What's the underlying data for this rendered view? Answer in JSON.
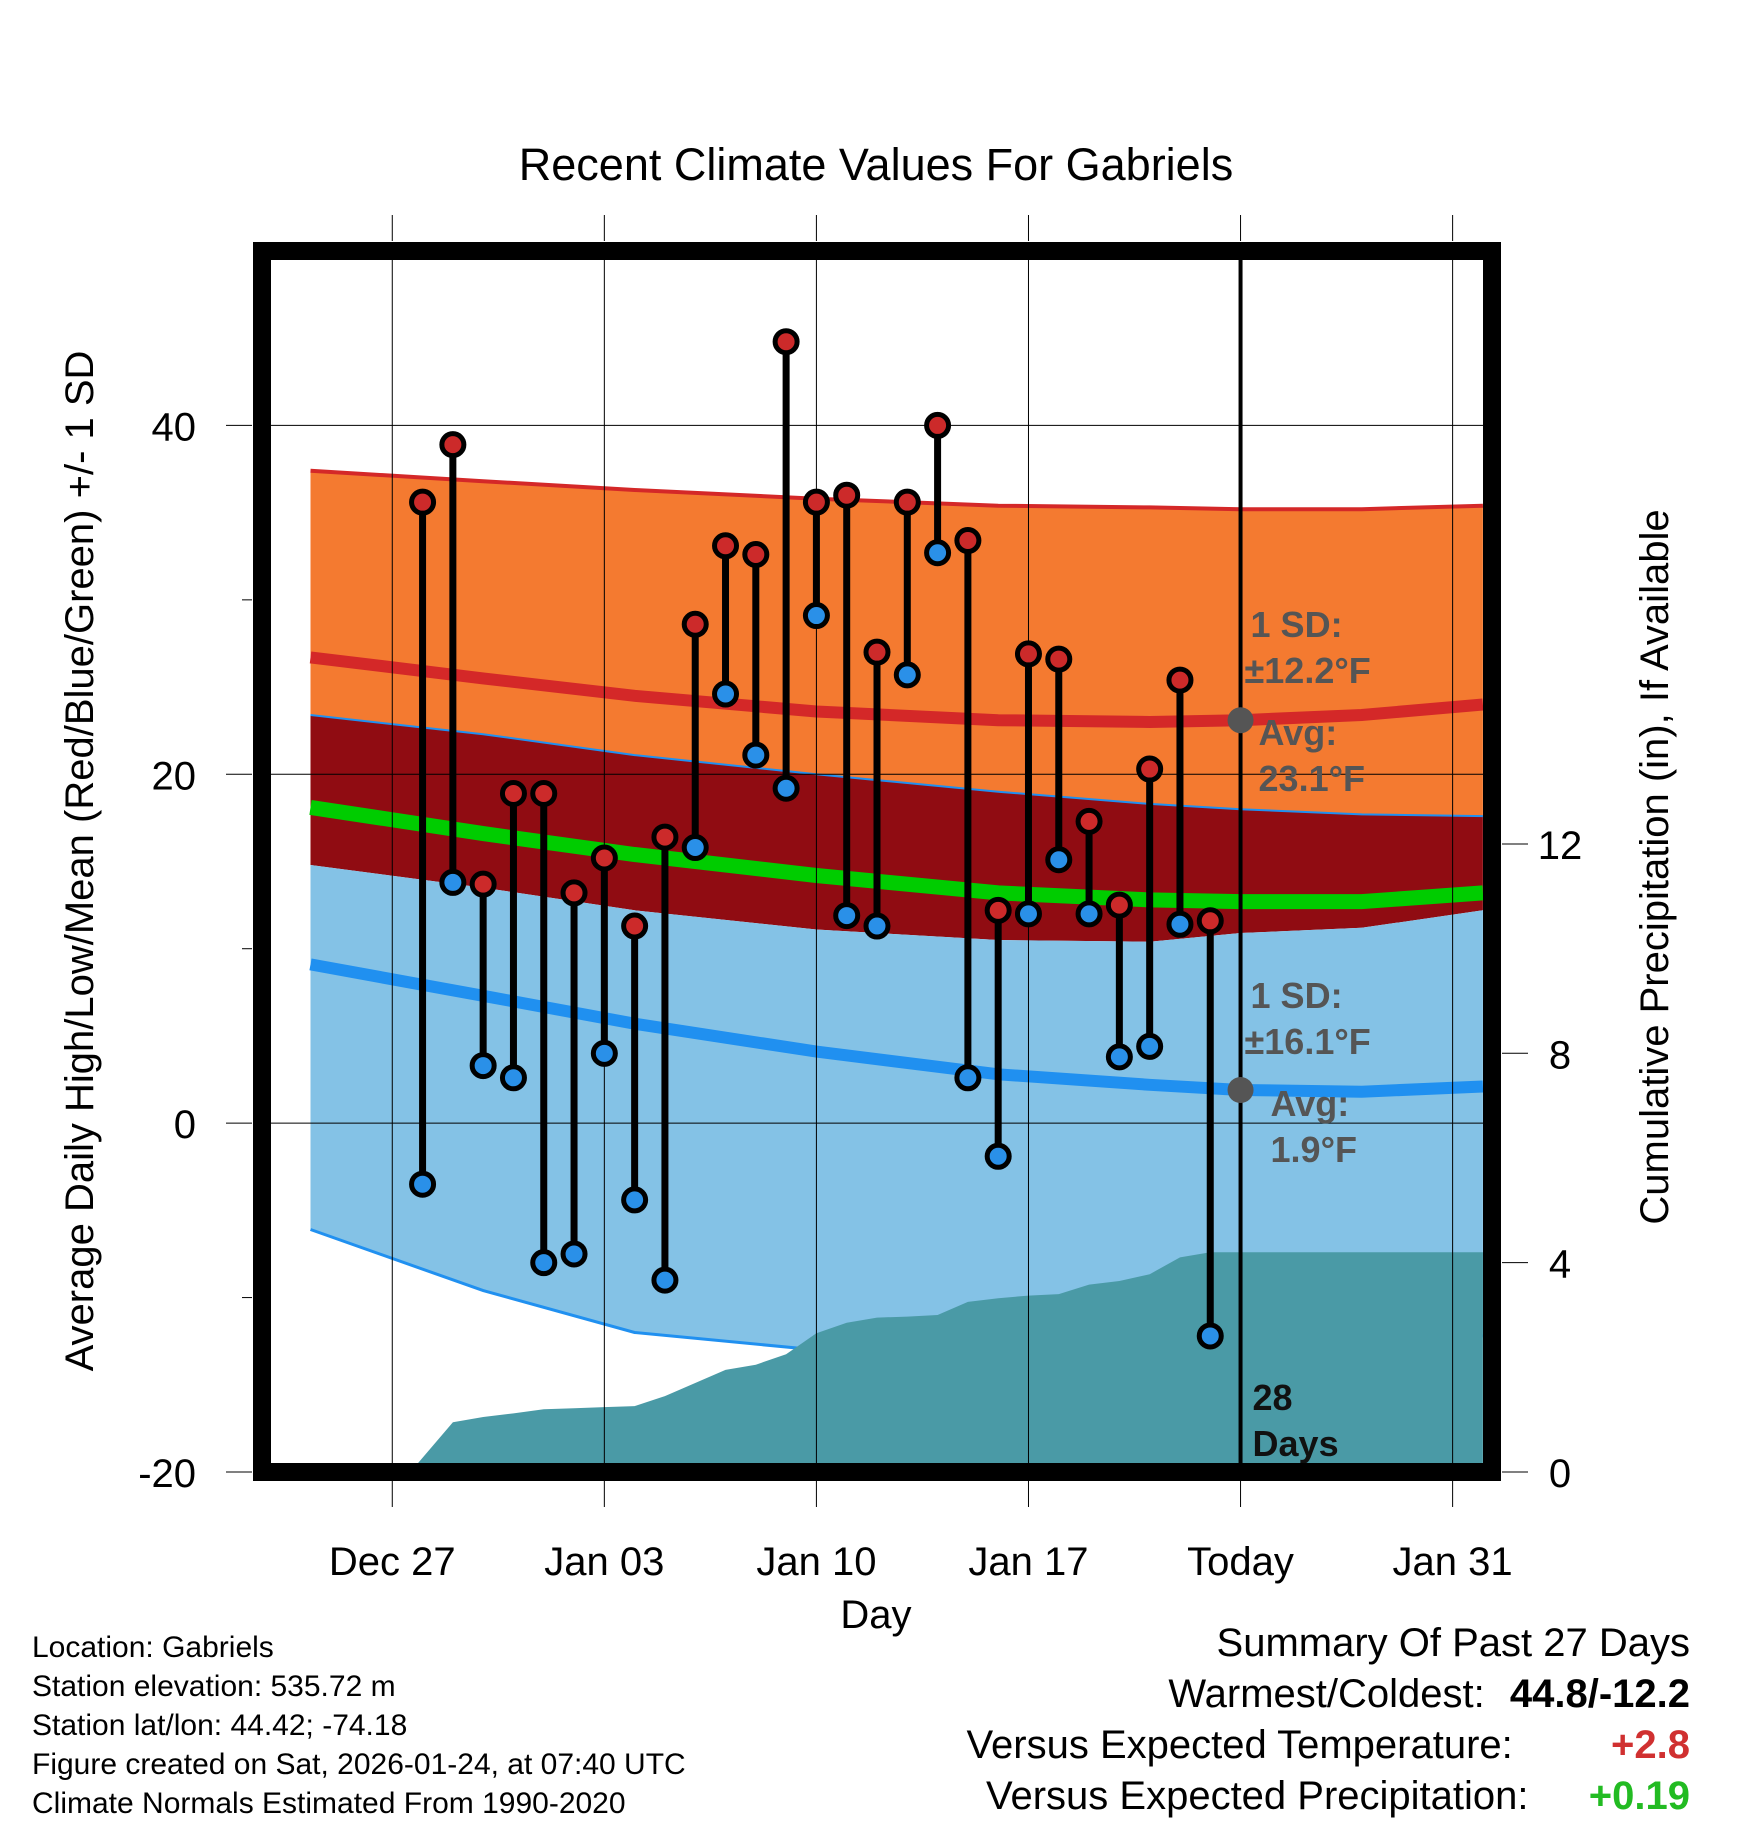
{
  "chart_data": {
    "type": "line",
    "title": "Recent Climate Values For Gabriels",
    "xlabel": "Day",
    "ylabel_left": "Average Daily High/Low/Mean (Red/Blue/Green) +/- 1 SD",
    "ylabel_right": "Cumulative Precipitation (in), If Available",
    "xlim": [
      -4.3,
      36.3
    ],
    "ylim_left": [
      -20,
      50
    ],
    "ylim_right": [
      0,
      23.33
    ],
    "x_ticks": [
      {
        "x": 0,
        "label": "Dec 27"
      },
      {
        "x": 7,
        "label": "Jan 03"
      },
      {
        "x": 14,
        "label": "Jan 10"
      },
      {
        "x": 21,
        "label": "Jan 17"
      },
      {
        "x": 28,
        "label": "Today"
      },
      {
        "x": 35,
        "label": "Jan 31"
      }
    ],
    "y_left_ticks": [
      {
        "value": -20,
        "label": "-20"
      },
      {
        "value": 0,
        "label": "0"
      },
      {
        "value": 20,
        "label": "20"
      },
      {
        "value": 40,
        "label": "40"
      }
    ],
    "y_left_minor_ticks": [
      -10,
      10,
      30
    ],
    "y_right_ticks": [
      {
        "value": 0,
        "label": "0"
      },
      {
        "value": 4,
        "label": "4"
      },
      {
        "value": 8,
        "label": "8"
      },
      {
        "value": 12,
        "label": "12"
      }
    ],
    "normals": {
      "x": [
        -2.7,
        3,
        8,
        14,
        20,
        25,
        28,
        32,
        36
      ],
      "high_upper": [
        37.4,
        36.8,
        36.3,
        35.8,
        35.4,
        35.3,
        35.2,
        35.2,
        35.4
      ],
      "high_mean": [
        26.7,
        25.5,
        24.5,
        23.6,
        23.1,
        23.0,
        23.1,
        23.4,
        24.0
      ],
      "high_lower": [
        23.4,
        22.3,
        21.1,
        20.0,
        19.0,
        18.3,
        18.0,
        17.7,
        17.6
      ],
      "mean": [
        18.1,
        16.6,
        15.4,
        14.2,
        13.2,
        12.8,
        12.7,
        12.7,
        13.2
      ],
      "low_upper": [
        14.8,
        13.5,
        12.2,
        11.1,
        10.5,
        10.4,
        10.9,
        11.2,
        12.2
      ],
      "low_mean": [
        9.1,
        7.3,
        5.7,
        4.1,
        2.8,
        2.2,
        1.9,
        1.8,
        2.1
      ],
      "low_lower": [
        -6.1,
        -9.6,
        -12.0,
        -13.0,
        -13.2,
        -12.9,
        -12.6,
        -12.4,
        -12.2
      ]
    },
    "series": [
      {
        "name": "Daily High",
        "color": "#cc2a2a",
        "x": [
          1,
          2,
          3,
          4,
          5,
          6,
          7,
          8,
          9,
          10,
          11,
          12,
          13,
          14,
          15,
          16,
          17,
          18,
          19,
          20,
          21,
          22,
          23,
          24,
          25,
          26,
          27
        ],
        "values": [
          35.6,
          38.9,
          13.7,
          18.9,
          18.9,
          13.2,
          15.2,
          11.3,
          16.4,
          28.6,
          33.1,
          32.6,
          44.8,
          35.6,
          36.0,
          27.0,
          35.6,
          40.0,
          33.4,
          12.2,
          26.9,
          26.6,
          17.3,
          12.5,
          20.3,
          25.4,
          11.6
        ]
      },
      {
        "name": "Daily Low",
        "color": "#2a90e8",
        "x": [
          1,
          2,
          3,
          4,
          5,
          6,
          7,
          8,
          9,
          10,
          11,
          12,
          13,
          14,
          15,
          16,
          17,
          18,
          19,
          20,
          21,
          22,
          23,
          24,
          25,
          26,
          27
        ],
        "values": [
          -3.5,
          13.8,
          3.3,
          2.6,
          -8.0,
          -7.5,
          4.0,
          -4.4,
          -9.0,
          15.8,
          24.6,
          21.1,
          19.2,
          29.1,
          11.9,
          11.3,
          25.7,
          32.7,
          2.6,
          -1.9,
          12.0,
          15.1,
          12.0,
          3.8,
          4.4,
          11.4,
          -12.2
        ]
      },
      {
        "name": "Cumulative Precipitation (in)",
        "color": "#4a9aa6",
        "x": [
          0.6,
          2.0,
          3.0,
          4.0,
          5.0,
          6.0,
          7.0,
          8.0,
          9.0,
          10.0,
          11.0,
          12.0,
          13.0,
          14.0,
          15.0,
          16.0,
          17.0,
          18.0,
          19.0,
          20.0,
          21.0,
          22.0,
          23.0,
          24.0,
          25.0,
          26.0,
          27.0,
          28.0,
          36.0
        ],
        "values": [
          0,
          0.95,
          1.05,
          1.12,
          1.2,
          1.22,
          1.24,
          1.26,
          1.45,
          1.7,
          1.95,
          2.05,
          2.25,
          2.65,
          2.85,
          2.95,
          2.97,
          3.0,
          3.25,
          3.32,
          3.37,
          3.4,
          3.58,
          3.65,
          3.78,
          4.1,
          4.2,
          4.2,
          4.2
        ]
      }
    ],
    "annotations": {
      "high_sd_label": "1 SD:",
      "high_sd_value": "±12.2°F",
      "high_avg_label": "Avg:",
      "high_avg_value": "23.1°F",
      "high_avg_y": 23.1,
      "low_sd_label": "1 SD:",
      "low_sd_value": "±16.1°F",
      "low_avg_label": "Avg:",
      "low_avg_value": "1.9°F",
      "low_avg_y": 1.9,
      "days_number": "28",
      "days_word": "Days",
      "today_x": 28
    },
    "colors": {
      "high_band": "#f47a30",
      "mean_band": "#900c12",
      "low_band": "#84c2e6",
      "mean_line": "#00cc00",
      "high_line": "#d42828",
      "low_line": "#2090f0",
      "precip": "#4a9aa6",
      "annotation": "#555555"
    }
  },
  "info": {
    "location": "Location: Gabriels",
    "elevation": "Station elevation: 535.72 m",
    "latlon": "Station lat/lon: 44.42; -74.18",
    "created": "Figure created on Sat, 2026-01-24, at 07:40 UTC",
    "normals": "Climate Normals Estimated From 1990-2020"
  },
  "summary": {
    "title": "Summary Of Past 27 Days",
    "warm_cold_label": "Warmest/Coldest:",
    "warm_cold_value": "44.8/-12.2",
    "temp_label": "Versus Expected Temperature:",
    "temp_value": "+2.8",
    "temp_color": "#d03030",
    "precip_label": "Versus Expected Precipitation:",
    "precip_value": "+0.19",
    "precip_color": "#22bb22"
  }
}
